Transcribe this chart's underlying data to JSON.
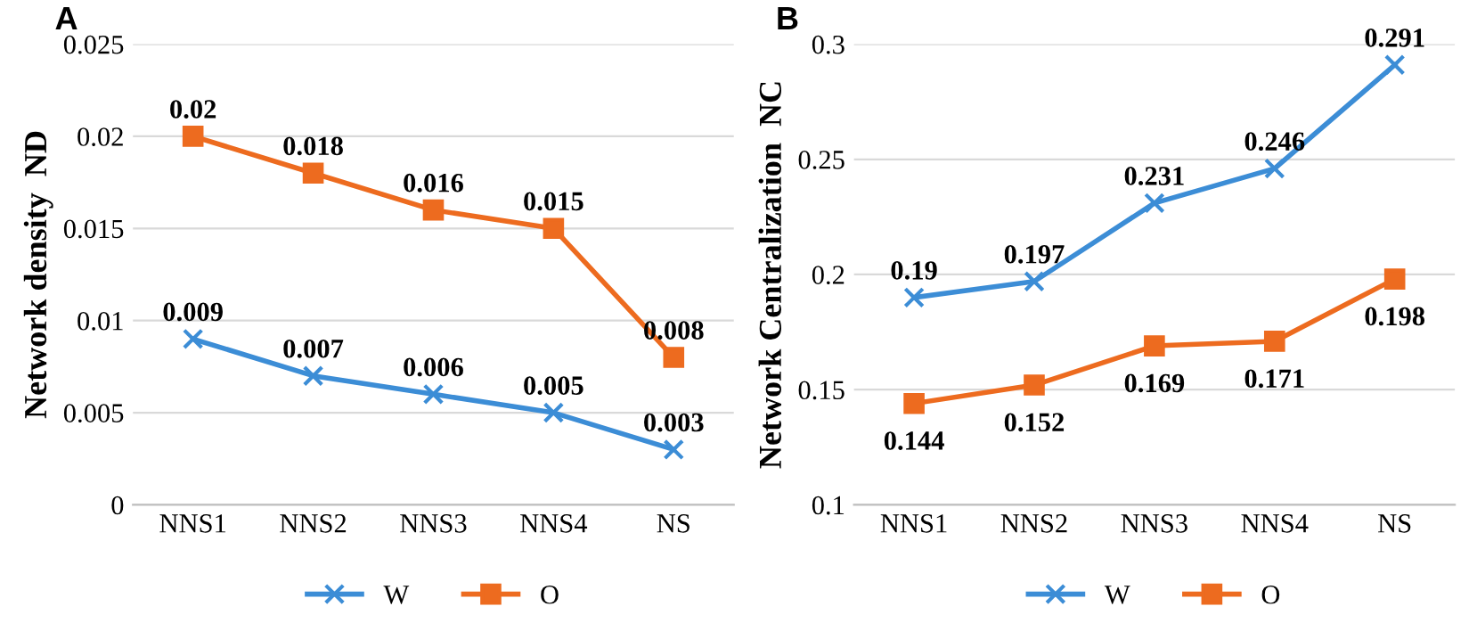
{
  "chart_data": [
    {
      "type": "line",
      "title": "A",
      "ylabel": "Network density  ND",
      "categories": [
        "NNS1",
        "NNS2",
        "NNS3",
        "NNS4",
        "NS"
      ],
      "series": [
        {
          "name": "W",
          "color": "#3c8dd6",
          "marker": "cross",
          "values": [
            0.009,
            0.007,
            0.006,
            0.005,
            0.003
          ]
        },
        {
          "name": "O",
          "color": "#ed6b1f",
          "marker": "square",
          "values": [
            0.02,
            0.018,
            0.016,
            0.015,
            0.008
          ]
        }
      ],
      "ylim": [
        0,
        0.025
      ],
      "yticks": [
        0,
        0.005,
        0.01,
        0.015,
        0.02,
        0.025
      ],
      "grid": "y",
      "legend": "bottom",
      "data_labels": true
    },
    {
      "type": "line",
      "title": "B",
      "ylabel": "Network Centralization  NC",
      "categories": [
        "NNS1",
        "NNS2",
        "NNS3",
        "NNS4",
        "NS"
      ],
      "series": [
        {
          "name": "W",
          "color": "#3c8dd6",
          "marker": "cross",
          "values": [
            0.19,
            0.197,
            0.231,
            0.246,
            0.291
          ]
        },
        {
          "name": "O",
          "color": "#ed6b1f",
          "marker": "square",
          "values": [
            0.144,
            0.152,
            0.169,
            0.171,
            0.198
          ]
        }
      ],
      "ylim": [
        0.1,
        0.3
      ],
      "yticks": [
        0.1,
        0.15,
        0.2,
        0.25,
        0.3
      ],
      "grid": "y",
      "legend": "bottom",
      "data_labels": true
    }
  ]
}
